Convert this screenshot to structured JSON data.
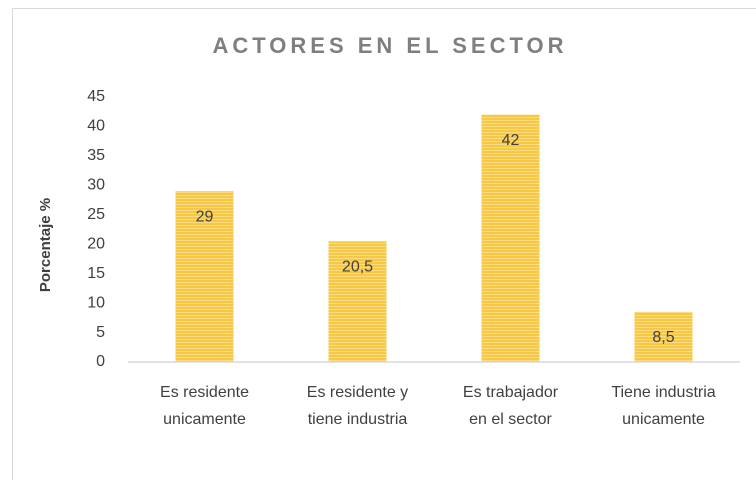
{
  "chart_data": {
    "type": "bar",
    "title": "ACTORES EN EL SECTOR",
    "y_label": "Porcentaje  %",
    "categories": [
      [
        "Es residente",
        "unicamente"
      ],
      [
        "Es residente y",
        "tiene industria"
      ],
      [
        "Es trabajador",
        "en el sector"
      ],
      [
        "Tiene industria",
        "unicamente"
      ]
    ],
    "values": [
      29,
      20.5,
      42,
      8.5
    ],
    "value_labels": [
      "29",
      "20,5",
      "42",
      "8,5"
    ],
    "color": "#f7c844",
    "ylim": [
      0,
      45
    ],
    "yticks": [
      0,
      5,
      10,
      15,
      20,
      25,
      30,
      35,
      40,
      45
    ],
    "grid": false
  }
}
